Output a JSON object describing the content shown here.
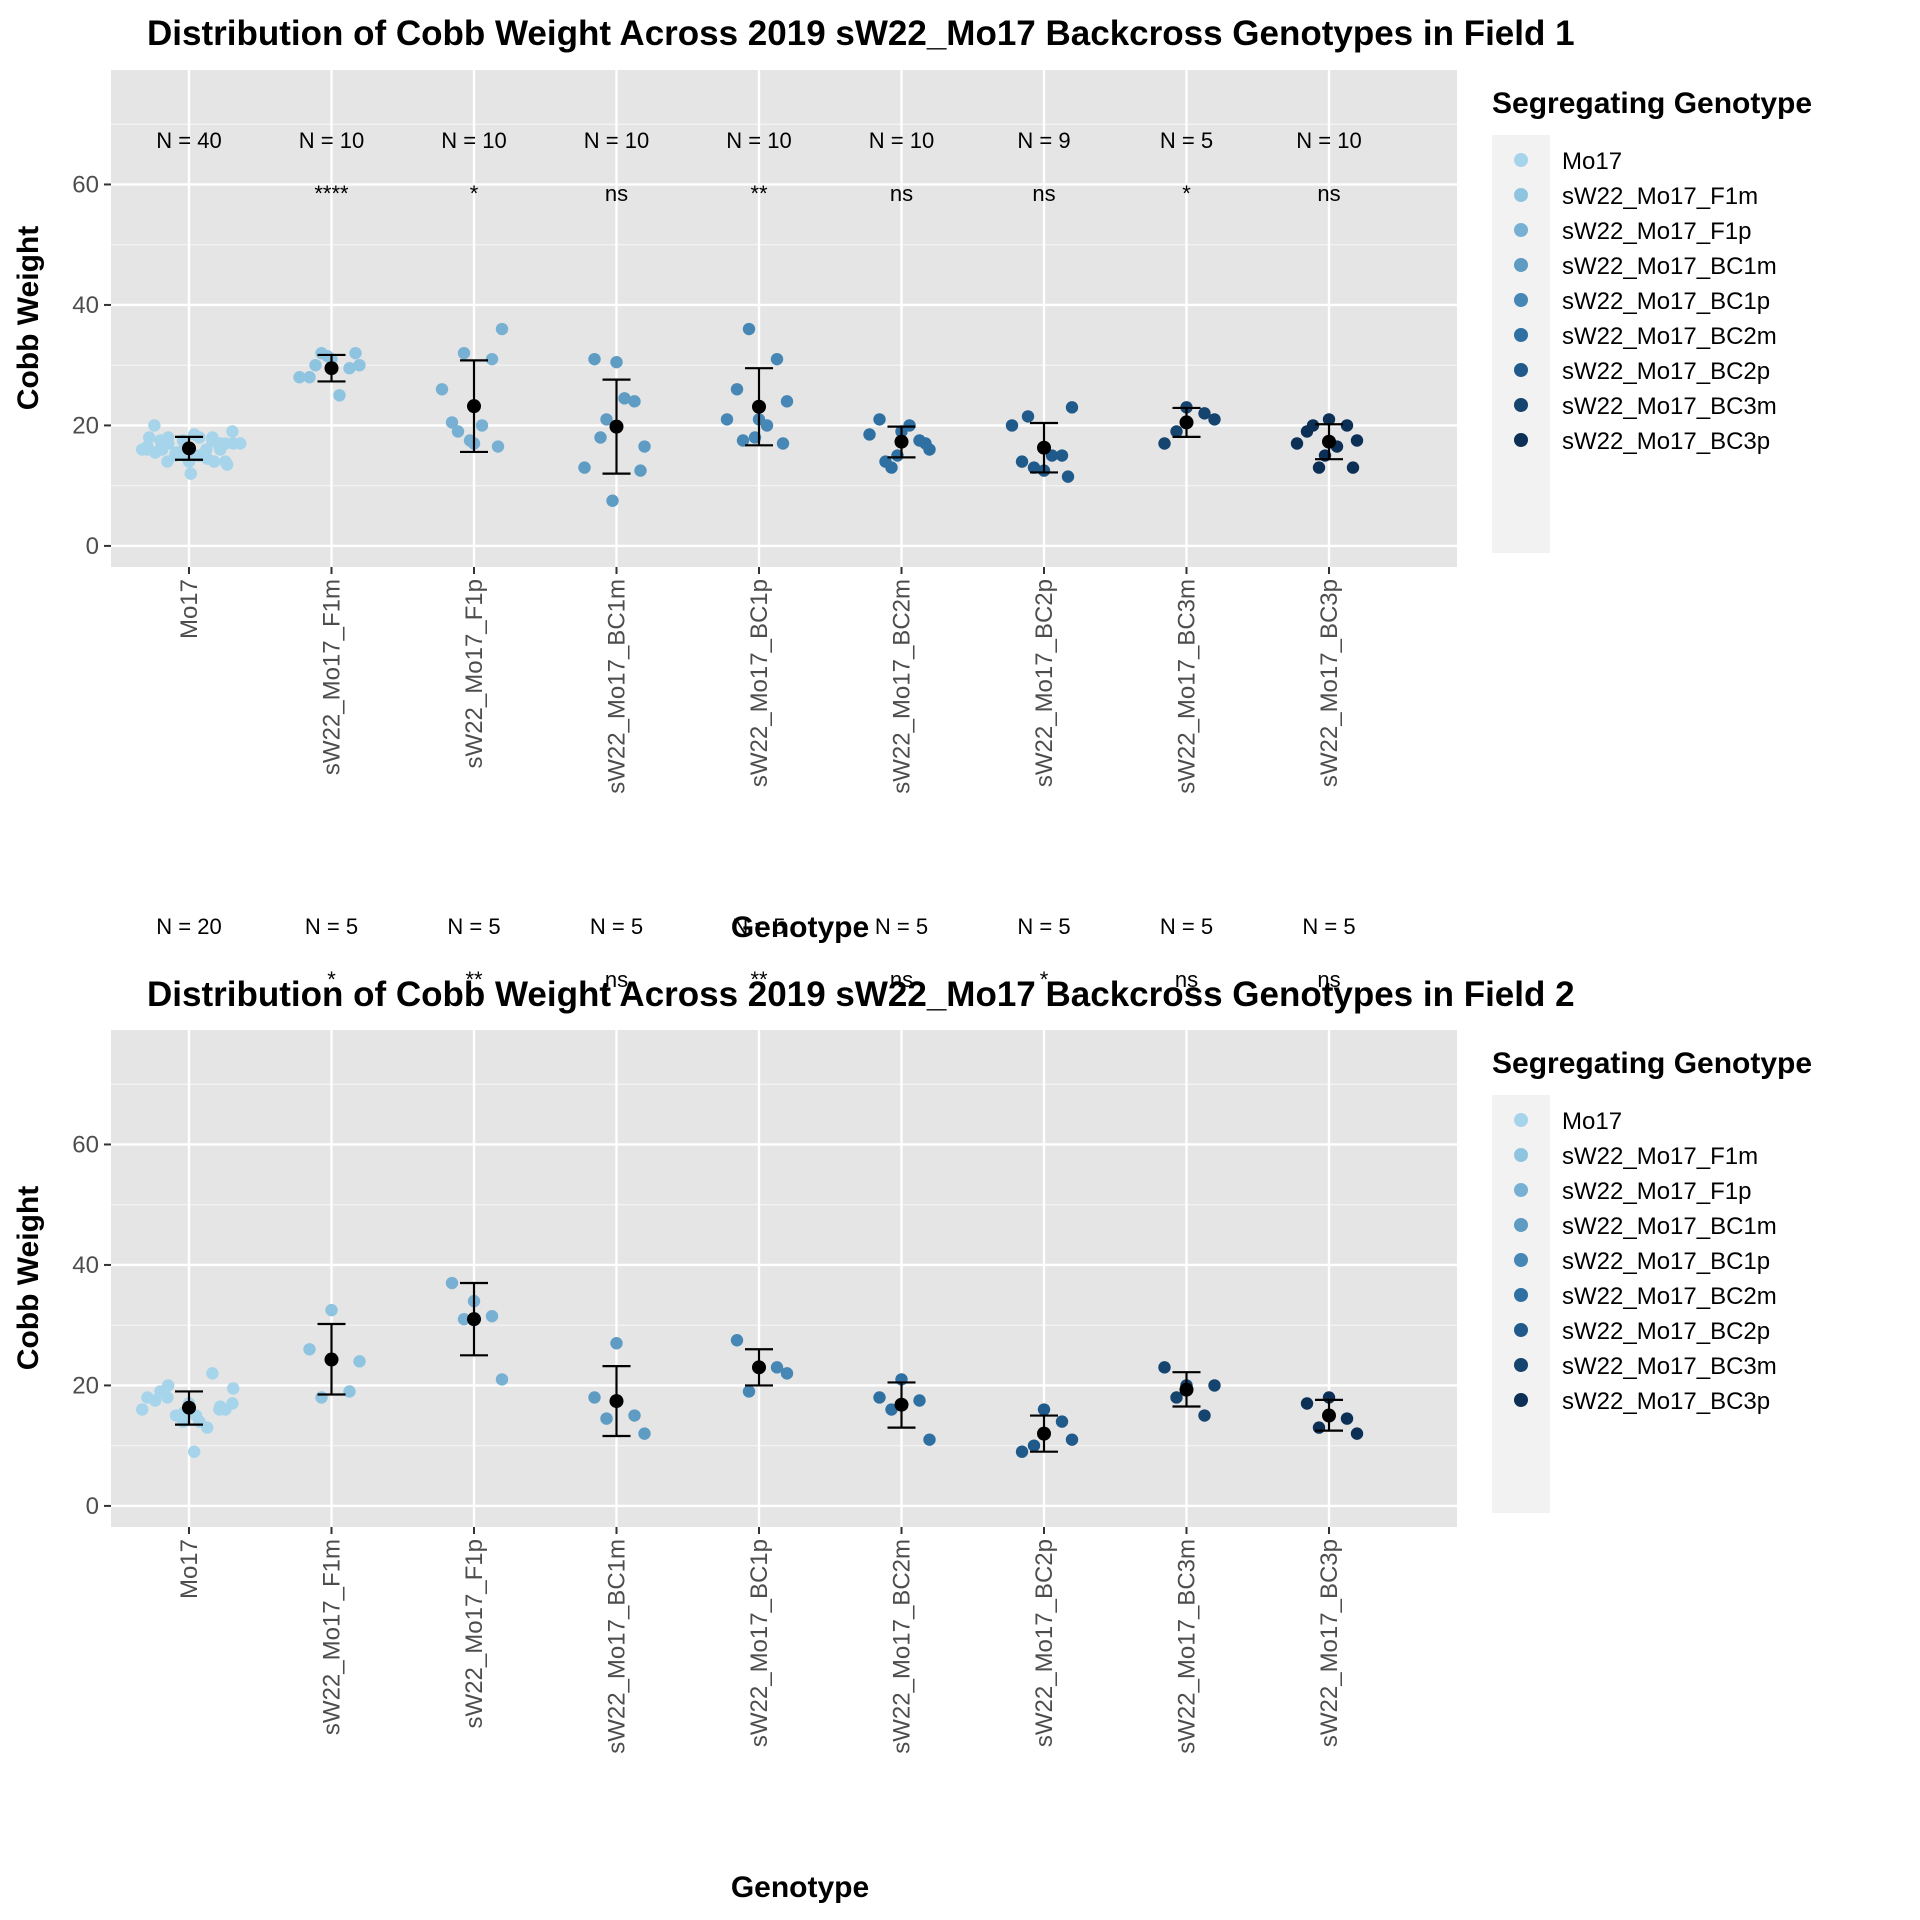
{
  "chart_data": [
    {
      "type": "scatter",
      "title": "Distribution of Cobb Weight Across 2019 sW22_Mo17 Backcross Genotypes in Field 1",
      "xlabel": "Genotype",
      "ylabel": "Cobb Weight",
      "ylim": [
        -3.5,
        79
      ],
      "yticks": [
        0,
        20,
        40,
        60
      ],
      "grid": true,
      "legend_placement": "right",
      "legend_title": "Segregating Genotype",
      "categories": [
        "Mo17",
        "sW22_Mo17_F1m",
        "sW22_Mo17_F1p",
        "sW22_Mo17_BC1m",
        "sW22_Mo17_BC1p",
        "sW22_Mo17_BC2m",
        "sW22_Mo17_BC2p",
        "sW22_Mo17_BC3m",
        "sW22_Mo17_BC3p"
      ],
      "n_labels": [
        "N = 40",
        "N = 10",
        "N = 10",
        "N = 10",
        "N = 10",
        "N = 10",
        "N = 9",
        "N = 5",
        "N = 10"
      ],
      "significance": [
        "",
        "****",
        "*",
        "ns",
        "**",
        "ns",
        "ns",
        "*",
        "ns"
      ],
      "mean": [
        16.2,
        29.5,
        23.2,
        19.8,
        23.1,
        17.3,
        16.3,
        20.5,
        17.3
      ],
      "error_low": [
        14.3,
        27.3,
        15.6,
        12.0,
        16.7,
        14.7,
        12.2,
        18.1,
        14.4
      ],
      "error_high": [
        18.1,
        31.7,
        30.8,
        27.6,
        29.5,
        19.8,
        20.4,
        22.9,
        20.2
      ],
      "points": [
        [
          16,
          17.5,
          18,
          15.5,
          17,
          16.5,
          15,
          18,
          17,
          16,
          14.5,
          15.5,
          17,
          16,
          18.5,
          15,
          14,
          16.5,
          17.5,
          19,
          20,
          16,
          15,
          13.5,
          12,
          14,
          16,
          17,
          18,
          15,
          14,
          16,
          17.5,
          15.5,
          14,
          16,
          18,
          17,
          16,
          15
        ],
        [
          31,
          28,
          29.5,
          32,
          30,
          28,
          25,
          30,
          32,
          31.5
        ],
        [
          17,
          20.5,
          31,
          32,
          36,
          26,
          20,
          19,
          16.5,
          17.5
        ],
        [
          30.5,
          31,
          24,
          21,
          16.5,
          13,
          24.5,
          18,
          12.5,
          7.5
        ],
        [
          21,
          26,
          31,
          36,
          24,
          21,
          20,
          17.5,
          17,
          18
        ],
        [
          19,
          21,
          17.5,
          13,
          16,
          18.5,
          20,
          14,
          17,
          15
        ],
        [
          12.5,
          14,
          15,
          13,
          23,
          20,
          15,
          21.5,
          11.5
        ],
        [
          23,
          17,
          22,
          19,
          21
        ],
        [
          21,
          19,
          20,
          13,
          17.5,
          17,
          16.5,
          20,
          13,
          15
        ]
      ],
      "colors": [
        "#a6d4ea",
        "#8fc4e0",
        "#77b0d3",
        "#5f9cc4",
        "#4787b5",
        "#2f70a2",
        "#1f5a8a",
        "#15446e",
        "#0c2f55"
      ]
    },
    {
      "type": "scatter",
      "title": "Distribution of Cobb Weight Across 2019 sW22_Mo17 Backcross Genotypes in Field 2",
      "xlabel": "Genotype",
      "ylabel": "Cobb Weight",
      "ylim": [
        -3.5,
        79
      ],
      "yticks": [
        0,
        20,
        40,
        60
      ],
      "grid": true,
      "legend_placement": "right",
      "legend_title": "Segregating Genotype",
      "categories": [
        "Mo17",
        "sW22_Mo17_F1m",
        "sW22_Mo17_F1p",
        "sW22_Mo17_BC1m",
        "sW22_Mo17_BC1p",
        "sW22_Mo17_BC2m",
        "sW22_Mo17_BC2p",
        "sW22_Mo17_BC3m",
        "sW22_Mo17_BC3p"
      ],
      "n_labels": [
        "N = 20",
        "N = 5",
        "N = 5",
        "N = 5",
        "N = 5",
        "N = 5",
        "N = 5",
        "N = 5",
        "N = 5"
      ],
      "significance": [
        "",
        "*",
        "**",
        "ns",
        "**",
        "ns",
        "*",
        "ns",
        "ns"
      ],
      "mean": [
        16.3,
        24.3,
        31.0,
        17.4,
        23.0,
        16.8,
        12.0,
        19.3,
        15.0
      ],
      "error_low": [
        13.5,
        18.5,
        25.0,
        11.6,
        20.0,
        13.0,
        9.0,
        16.5,
        12.5
      ],
      "error_high": [
        19.0,
        30.2,
        37.0,
        23.2,
        26.0,
        20.5,
        15.0,
        22.2,
        17.6
      ],
      "points": [
        [
          17,
          19,
          22,
          15,
          16,
          18,
          14,
          20,
          16.5,
          15.5,
          13,
          17.5,
          19.5,
          16,
          9,
          15,
          18,
          16,
          14,
          17
        ],
        [
          32.5,
          26,
          19,
          18,
          24
        ],
        [
          34,
          37,
          31.5,
          31,
          21
        ],
        [
          27,
          18,
          15,
          14.5,
          12
        ],
        [
          23,
          27.5,
          23,
          19,
          22
        ],
        [
          21,
          18,
          17.5,
          16,
          11
        ],
        [
          16,
          9,
          14,
          10,
          11
        ],
        [
          20,
          23,
          15,
          18,
          20
        ],
        [
          18,
          17,
          14.5,
          13,
          12
        ]
      ],
      "colors": [
        "#a6d4ea",
        "#8fc4e0",
        "#77b0d3",
        "#5f9cc4",
        "#4787b5",
        "#2f70a2",
        "#1f5a8a",
        "#15446e",
        "#0c2f55"
      ]
    }
  ]
}
